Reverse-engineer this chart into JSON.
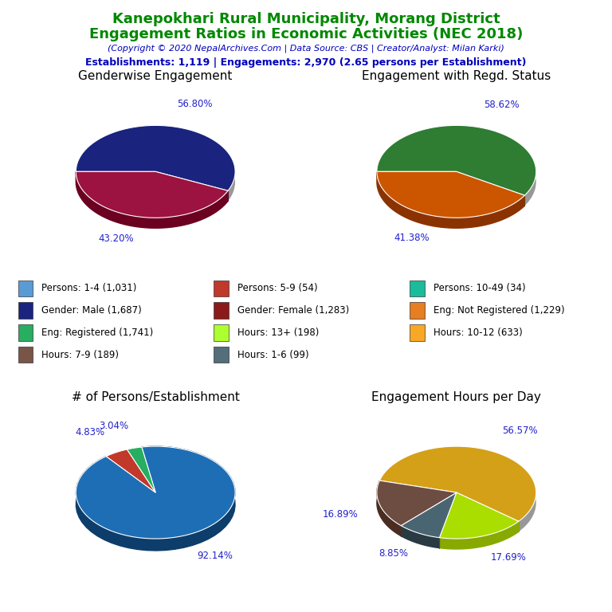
{
  "title_line1": "Kanepokhari Rural Municipality, Morang District",
  "title_line2": "Engagement Ratios in Economic Activities (NEC 2018)",
  "subtitle": "(Copyright © 2020 NepalArchives.Com | Data Source: CBS | Creator/Analyst: Milan Karki)",
  "stats_line": "Establishments: 1,119 | Engagements: 2,970 (2.65 persons per Establishment)",
  "title_color": "#008800",
  "subtitle_color": "#0000bb",
  "stats_color": "#0000bb",
  "pie1_title": "Genderwise Engagement",
  "pie1_values": [
    56.8,
    43.2
  ],
  "pie1_colors": [
    "#1a237e",
    "#9c1240"
  ],
  "pie1_edge_colors": [
    "#0d0d4d",
    "#6b0020"
  ],
  "pie1_labels": [
    "56.80%",
    "43.20%"
  ],
  "pie1_startangle": 180,
  "pie2_title": "Engagement with Regd. Status",
  "pie2_values": [
    58.62,
    41.38
  ],
  "pie2_colors": [
    "#2e7d32",
    "#cc5500"
  ],
  "pie2_edge_colors": [
    "#1a4a1a",
    "#8b3300"
  ],
  "pie2_labels": [
    "58.62%",
    "41.38%"
  ],
  "pie2_startangle": 180,
  "pie3_title": "# of Persons/Establishment",
  "pie3_values": [
    92.14,
    4.83,
    3.04
  ],
  "pie3_colors": [
    "#1e6eb5",
    "#c0392b",
    "#27ae60"
  ],
  "pie3_edge_colors": [
    "#0d3d6b",
    "#7b241c",
    "#1a7a45"
  ],
  "pie3_labels": [
    "92.14%",
    "4.83%",
    "3.04%"
  ],
  "pie3_startangle": 100,
  "pie4_title": "Engagement Hours per Day",
  "pie4_values": [
    56.57,
    17.69,
    8.85,
    16.89
  ],
  "pie4_colors": [
    "#d4a017",
    "#aadd00",
    "#4a6572",
    "#6d4c41"
  ],
  "pie4_edge_colors": [
    "#a07010",
    "#88aa00",
    "#2a3a42",
    "#4a2c20"
  ],
  "pie4_labels": [
    "56.57%",
    "17.69%",
    "8.85%",
    "16.89%"
  ],
  "pie4_startangle": 165,
  "legend_items": [
    {
      "label": "Persons: 1-4 (1,031)",
      "color": "#5b9bd5"
    },
    {
      "label": "Persons: 5-9 (54)",
      "color": "#c0392b"
    },
    {
      "label": "Persons: 10-49 (34)",
      "color": "#1abc9c"
    },
    {
      "label": "Gender: Male (1,687)",
      "color": "#1a237e"
    },
    {
      "label": "Gender: Female (1,283)",
      "color": "#8b1a1a"
    },
    {
      "label": "Eng: Not Registered (1,229)",
      "color": "#e67e22"
    },
    {
      "label": "Eng: Registered (1,741)",
      "color": "#27ae60"
    },
    {
      "label": "Hours: 13+ (198)",
      "color": "#adff2f"
    },
    {
      "label": "Hours: 10-12 (633)",
      "color": "#f9a825"
    },
    {
      "label": "Hours: 7-9 (189)",
      "color": "#795548"
    },
    {
      "label": "Hours: 1-6 (99)",
      "color": "#546e7a"
    }
  ]
}
